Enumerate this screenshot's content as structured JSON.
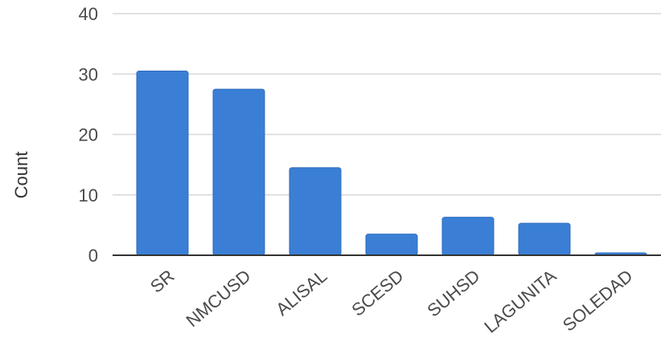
{
  "chart_data": {
    "type": "bar",
    "title": "",
    "xlabel": "",
    "ylabel": "Count",
    "categories": [
      "SR",
      "NMCUSD",
      "ALISAL",
      "SCESD",
      "SUHSD",
      "LAGUNITA",
      "SOLEDAD"
    ],
    "values": [
      30.5,
      27.5,
      14.5,
      3.5,
      6.3,
      5.3,
      0.4
    ],
    "ylim": [
      0,
      40
    ],
    "yticks": [
      0,
      10,
      20,
      30,
      40
    ],
    "ytick_labels": [
      "0",
      "10",
      "20",
      "30",
      "40"
    ],
    "grid": true,
    "legend": "none",
    "colors": {
      "bar": "#3a7fd5",
      "bar_edge": "#2f6cbd",
      "grid": "#d8d8d8",
      "axis": "#333333"
    }
  }
}
